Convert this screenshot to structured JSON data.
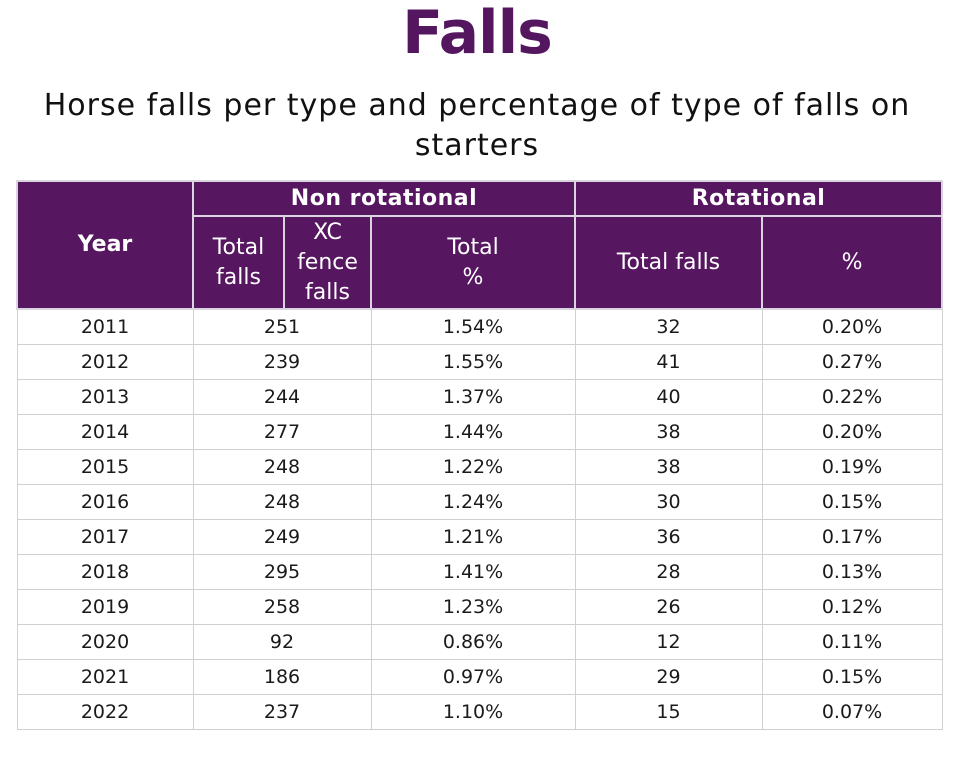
{
  "title": "Falls",
  "subtitle": "Horse falls per type and percentage of type of falls on starters",
  "table": {
    "year_header": "Year",
    "group_non_rotational": "Non rotational",
    "group_rotational": "Rotational",
    "sub_headers": {
      "total_falls_line1": "Total",
      "total_falls_line2": "falls",
      "xc_line1": "XC",
      "xc_line2": "fence",
      "xc_line3": "falls",
      "total_pct_line1": "Total",
      "total_pct_line2": "%",
      "rot_total_falls": "Total falls",
      "rot_pct": "%"
    },
    "rows": [
      {
        "year": "2011",
        "non_rot_falls": "251",
        "non_rot_pct": "1.54%",
        "rot_falls": "32",
        "rot_pct": "0.20%"
      },
      {
        "year": "2012",
        "non_rot_falls": "239",
        "non_rot_pct": "1.55%",
        "rot_falls": "41",
        "rot_pct": "0.27%"
      },
      {
        "year": "2013",
        "non_rot_falls": "244",
        "non_rot_pct": "1.37%",
        "rot_falls": "40",
        "rot_pct": "0.22%"
      },
      {
        "year": "2014",
        "non_rot_falls": "277",
        "non_rot_pct": "1.44%",
        "rot_falls": "38",
        "rot_pct": "0.20%"
      },
      {
        "year": "2015",
        "non_rot_falls": "248",
        "non_rot_pct": "1.22%",
        "rot_falls": "38",
        "rot_pct": "0.19%"
      },
      {
        "year": "2016",
        "non_rot_falls": "248",
        "non_rot_pct": "1.24%",
        "rot_falls": "30",
        "rot_pct": "0.15%"
      },
      {
        "year": "2017",
        "non_rot_falls": "249",
        "non_rot_pct": "1.21%",
        "rot_falls": "36",
        "rot_pct": "0.17%"
      },
      {
        "year": "2018",
        "non_rot_falls": "295",
        "non_rot_pct": "1.41%",
        "rot_falls": "28",
        "rot_pct": "0.13%"
      },
      {
        "year": "2019",
        "non_rot_falls": "258",
        "non_rot_pct": "1.23%",
        "rot_falls": "26",
        "rot_pct": "0.12%"
      },
      {
        "year": "2020",
        "non_rot_falls": "92",
        "non_rot_pct": "0.86%",
        "rot_falls": "12",
        "rot_pct": "0.11%"
      },
      {
        "year": "2021",
        "non_rot_falls": "186",
        "non_rot_pct": "0.97%",
        "rot_falls": "29",
        "rot_pct": "0.15%"
      },
      {
        "year": "2022",
        "non_rot_falls": "237",
        "non_rot_pct": "1.10%",
        "rot_falls": "15",
        "rot_pct": "0.07%"
      }
    ]
  },
  "colors": {
    "brand_purple": "#54175f",
    "header_bg": "#561660"
  }
}
